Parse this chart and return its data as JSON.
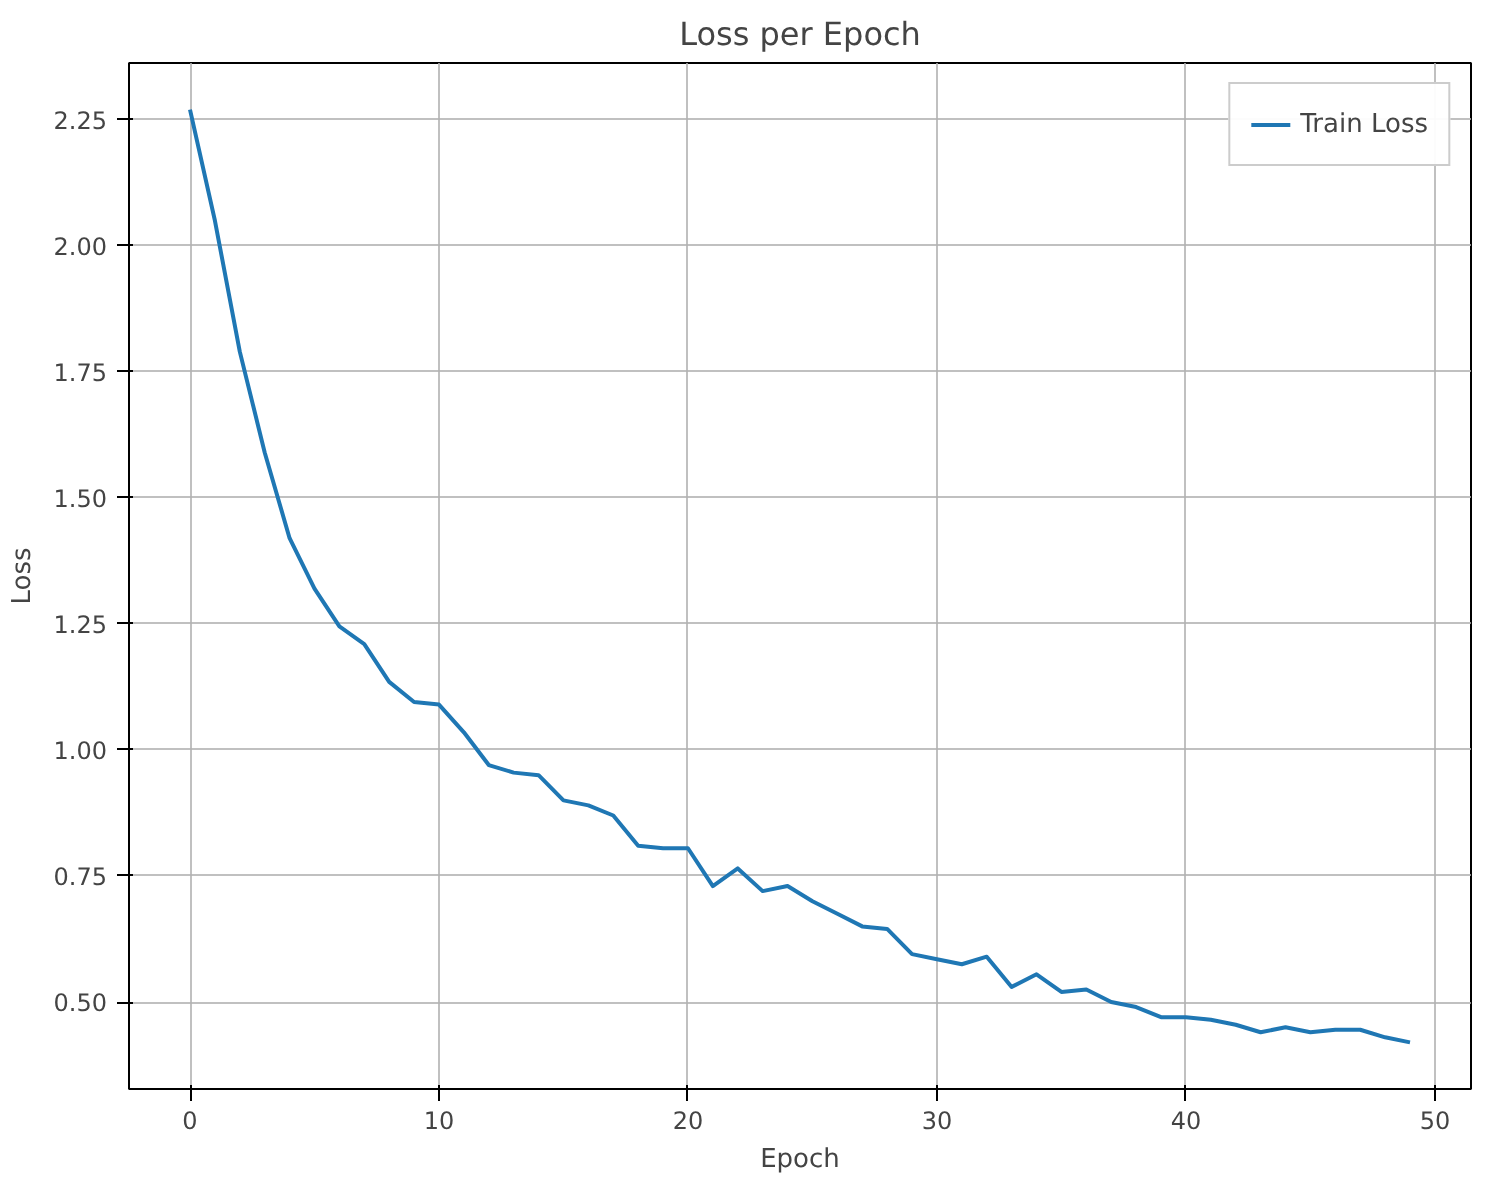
{
  "chart_data": {
    "type": "line",
    "title": "Loss per Epoch",
    "xlabel": "Epoch",
    "ylabel": "Loss",
    "x": [
      0,
      1,
      2,
      3,
      4,
      5,
      6,
      7,
      8,
      9,
      10,
      11,
      12,
      13,
      14,
      15,
      16,
      17,
      18,
      19,
      20,
      21,
      22,
      23,
      24,
      25,
      26,
      27,
      28,
      29,
      30,
      31,
      32,
      33,
      34,
      35,
      36,
      37,
      38,
      39,
      40,
      41,
      42,
      43,
      44,
      45,
      46,
      47,
      48,
      49
    ],
    "series": [
      {
        "name": "Train Loss",
        "color": "#1f77b4",
        "values": [
          2.27,
          2.05,
          1.79,
          1.59,
          1.42,
          1.32,
          1.245,
          1.21,
          1.135,
          1.095,
          1.09,
          1.035,
          0.97,
          0.955,
          0.95,
          0.9,
          0.89,
          0.87,
          0.81,
          0.805,
          0.805,
          0.73,
          0.765,
          0.72,
          0.73,
          0.7,
          0.675,
          0.65,
          0.645,
          0.595,
          0.585,
          0.575,
          0.59,
          0.53,
          0.555,
          0.52,
          0.525,
          0.5,
          0.49,
          0.47,
          0.47,
          0.465,
          0.455,
          0.44,
          0.45,
          0.44,
          0.445,
          0.445,
          0.43,
          0.42
        ]
      }
    ],
    "xlim": [
      -2.45,
      51.45
    ],
    "ylim": [
      0.3275,
      2.3625
    ],
    "xticks": [
      0,
      10,
      20,
      30,
      40,
      50
    ],
    "yticks": [
      {
        "value": 0.5,
        "label": "0.50"
      },
      {
        "value": 0.75,
        "label": "0.75"
      },
      {
        "value": 1.0,
        "label": "1.00"
      },
      {
        "value": 1.25,
        "label": "1.25"
      },
      {
        "value": 1.5,
        "label": "1.50"
      },
      {
        "value": 1.75,
        "label": "1.75"
      },
      {
        "value": 2.0,
        "label": "2.00"
      },
      {
        "value": 2.25,
        "label": "2.25"
      }
    ],
    "grid": true,
    "legend": "top right",
    "line_style": "solid"
  }
}
